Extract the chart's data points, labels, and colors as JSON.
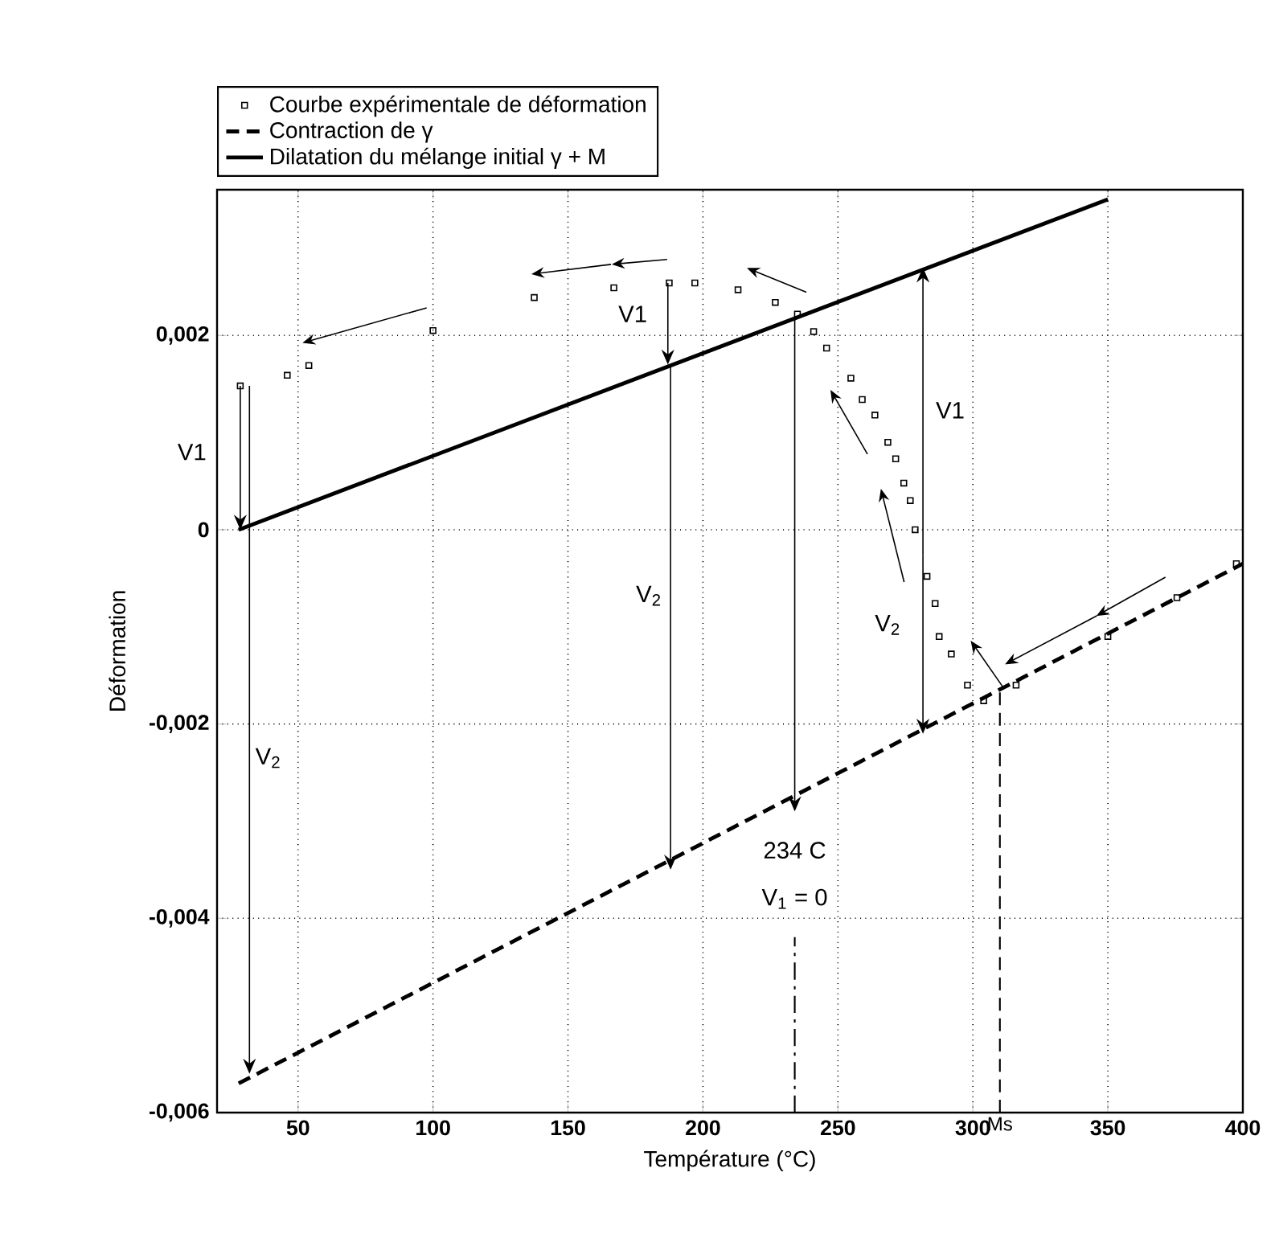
{
  "chart_data": {
    "type": "line",
    "xlabel": "Température  (°C)",
    "ylabel": "Déformation",
    "xlim": [
      20,
      400
    ],
    "ylim": [
      -0.006,
      0.0035
    ],
    "xticks": [
      50,
      100,
      150,
      200,
      250,
      300,
      350,
      400
    ],
    "yticks": [
      {
        "value": -0.006,
        "label": "-0,006"
      },
      {
        "value": -0.004,
        "label": "-0,004"
      },
      {
        "value": -0.002,
        "label": "-0,002"
      },
      0,
      {
        "value": 0.002,
        "label": "0,002"
      }
    ],
    "grid": true,
    "legend": "top left",
    "series": [
      {
        "name": "Courbe expérimentale de déformation",
        "type": "scatter",
        "marker": "square",
        "color": "#000000",
        "x": [
          397.6,
          375.6,
          350,
          316,
          304,
          298,
          292,
          287.5,
          286,
          283,
          278.6,
          276.8,
          274.4,
          271.4,
          268.5,
          263.7,
          259,
          254.8,
          245.8,
          241,
          235,
          226.8,
          213,
          197,
          187.5,
          167,
          137.5,
          100,
          54,
          46,
          28.6
        ],
        "values": [
          -0.00035,
          -0.0007,
          -0.0011,
          -0.0016,
          -0.00176,
          -0.0016,
          -0.00128,
          -0.0011,
          -0.00076,
          -0.00048,
          0,
          0.0003,
          0.00048,
          0.00073,
          0.0009,
          0.00118,
          0.00134,
          0.00156,
          0.00187,
          0.00204,
          0.00222,
          0.00234,
          0.00247,
          0.00254,
          0.00254,
          0.00249,
          0.00239,
          0.00205,
          0.00169,
          0.00159,
          0.00148
        ]
      },
      {
        "name": "Contraction de γ",
        "type": "line",
        "line_style": "dashed",
        "color": "#000000",
        "x": [
          28,
          400
        ],
        "values": [
          -0.0057,
          -0.00035
        ]
      },
      {
        "name": "Dilatation du mélange initial γ + M",
        "type": "line",
        "line_style": "solid",
        "color": "#000000",
        "x": [
          28,
          350
        ],
        "values": [
          0,
          0.0034
        ]
      }
    ],
    "ref_lines": [
      {
        "axis": "x",
        "value": 310,
        "label": "Ms",
        "line_style": "dashed"
      },
      {
        "axis": "x",
        "value": 234,
        "line_style": "dashdot"
      }
    ],
    "annotations": [
      "V1",
      "V$_{2}$",
      "V1",
      "V$_{2}$",
      "V1",
      "V$_{2}$",
      "234 C",
      "V$_{1}$ = 0"
    ]
  }
}
